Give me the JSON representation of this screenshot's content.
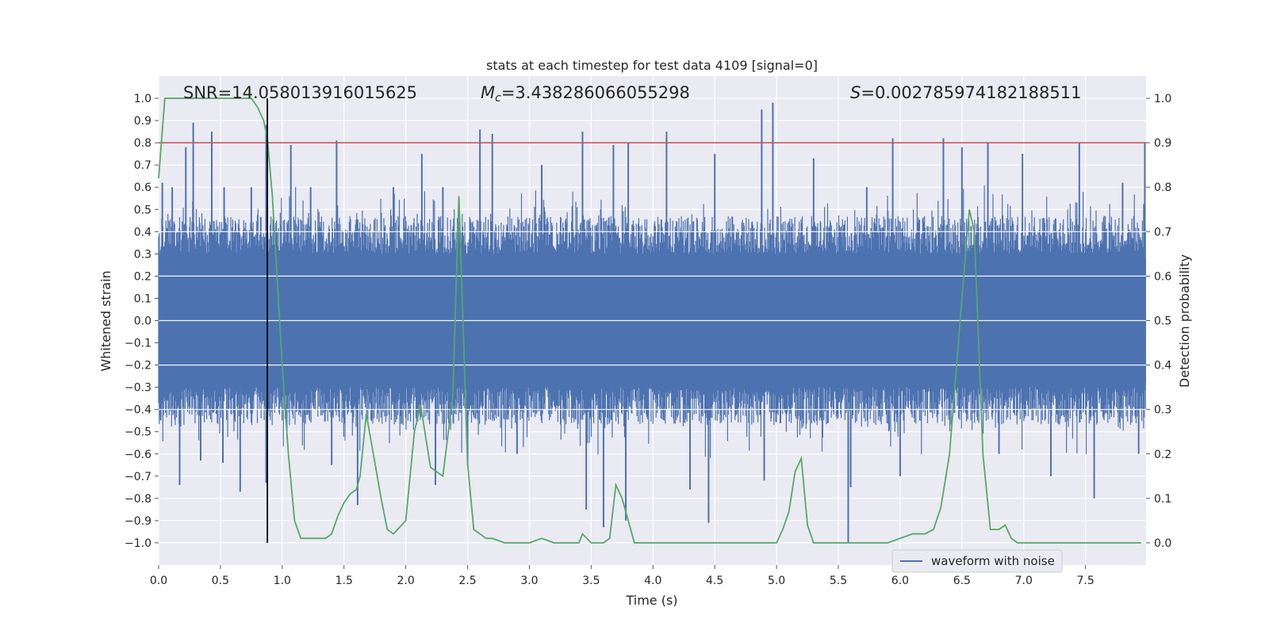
{
  "chart_data": {
    "type": "line",
    "title": "stats at each timestep for test data 4109 [signal=0]",
    "xlabel": "Time (s)",
    "ylabel": "Whitened strain",
    "y2label": "Detection probability",
    "xlim": [
      0.0,
      7.99
    ],
    "ylim": [
      -1.1,
      1.1
    ],
    "y2lim": [
      -0.05,
      1.05
    ],
    "xticks": [
      0.0,
      0.5,
      1.0,
      1.5,
      2.0,
      2.5,
      3.0,
      3.5,
      4.0,
      4.5,
      5.0,
      5.5,
      6.0,
      6.5,
      7.0,
      7.5
    ],
    "yticks": [
      -1.0,
      -0.9,
      -0.8,
      -0.7,
      -0.6,
      -0.5,
      -0.4,
      -0.3,
      -0.2,
      -0.1,
      0.0,
      0.1,
      0.2,
      0.3,
      0.4,
      0.5,
      0.6,
      0.7,
      0.8,
      0.9,
      1.0
    ],
    "y2ticks": [
      0.0,
      0.1,
      0.2,
      0.3,
      0.4,
      0.5,
      0.6,
      0.7,
      0.8,
      0.9,
      1.0
    ],
    "threshold": 0.9,
    "marker_time": 0.88,
    "annotations": {
      "snr": "SNR=14.058013916015625",
      "mc_symbol": "M",
      "mc_sub": "c",
      "mc_value": "=3.438286066055298",
      "s_symbol": "S",
      "s_value": "=0.002785974182188511"
    },
    "legend": [
      {
        "label": "waveform with noise",
        "color": "#4c72b0"
      }
    ],
    "colors": {
      "waveform": "#4c72b0",
      "probability": "#55a868",
      "threshold": "#c44e52",
      "marker": "#000000",
      "background": "#eaeaf2",
      "grid": "#ffffff"
    },
    "series": [
      {
        "name": "waveform with noise",
        "axis": "left",
        "note": "dense noisy strain signal; main body spans roughly -0.4 to 0.4 with spikes",
        "spikes": [
          [
            0.03,
            0.62
          ],
          [
            0.11,
            0.6
          ],
          [
            0.17,
            -0.74
          ],
          [
            0.22,
            0.78
          ],
          [
            0.28,
            0.89
          ],
          [
            0.34,
            -0.63
          ],
          [
            0.43,
            0.85
          ],
          [
            0.52,
            -0.64
          ],
          [
            0.53,
            0.6
          ],
          [
            0.66,
            -0.77
          ],
          [
            0.75,
            0.6
          ],
          [
            0.87,
            0.88
          ],
          [
            0.87,
            -0.73
          ],
          [
            1.07,
            0.79
          ],
          [
            1.23,
            0.6
          ],
          [
            1.4,
            -0.65
          ],
          [
            1.44,
            0.81
          ],
          [
            1.61,
            -0.83
          ],
          [
            1.9,
            0.6
          ],
          [
            2.13,
            0.75
          ],
          [
            2.24,
            -0.74
          ],
          [
            2.3,
            0.6
          ],
          [
            2.5,
            -0.65
          ],
          [
            2.6,
            0.86
          ],
          [
            2.7,
            0.84
          ],
          [
            2.9,
            -0.6
          ],
          [
            3.1,
            0.7
          ],
          [
            3.43,
            0.85
          ],
          [
            3.46,
            -0.85
          ],
          [
            3.6,
            -0.93
          ],
          [
            3.68,
            0.79
          ],
          [
            3.78,
            -0.9
          ],
          [
            3.8,
            0.8
          ],
          [
            4.11,
            0.85
          ],
          [
            4.3,
            -0.76
          ],
          [
            4.45,
            -0.91
          ],
          [
            4.5,
            0.75
          ],
          [
            4.88,
            0.95
          ],
          [
            4.97,
            0.98
          ],
          [
            4.9,
            -0.72
          ],
          [
            5.3,
            0.73
          ],
          [
            5.58,
            -1.0
          ],
          [
            5.6,
            -0.75
          ],
          [
            5.73,
            0.6
          ],
          [
            5.94,
            0.82
          ],
          [
            6.0,
            -0.7
          ],
          [
            6.35,
            0.82
          ],
          [
            6.5,
            0.78
          ],
          [
            6.71,
            0.8
          ],
          [
            6.8,
            -0.6
          ],
          [
            6.99,
            0.75
          ],
          [
            7.22,
            -0.7
          ],
          [
            7.45,
            0.8
          ],
          [
            7.57,
            -0.8
          ],
          [
            7.8,
            0.62
          ],
          [
            7.93,
            -0.6
          ],
          [
            7.98,
            0.8
          ]
        ]
      },
      {
        "name": "detection probability",
        "axis": "right",
        "x": [
          0.0,
          0.05,
          0.11,
          0.2,
          0.3,
          0.4,
          0.5,
          0.6,
          0.65,
          0.7,
          0.75,
          0.8,
          0.85,
          0.88,
          0.92,
          1.0,
          1.05,
          1.1,
          1.15,
          1.2,
          1.25,
          1.3,
          1.35,
          1.4,
          1.45,
          1.5,
          1.55,
          1.6,
          1.63,
          1.68,
          1.75,
          1.8,
          1.85,
          1.9,
          2.0,
          2.07,
          2.12,
          2.2,
          2.3,
          2.38,
          2.43,
          2.5,
          2.55,
          2.6,
          2.65,
          2.7,
          2.8,
          2.9,
          3.0,
          3.1,
          3.2,
          3.3,
          3.4,
          3.43,
          3.5,
          3.55,
          3.6,
          3.65,
          3.7,
          3.75,
          3.8,
          3.85,
          3.9,
          3.95,
          4.0,
          4.1,
          4.2,
          4.3,
          4.4,
          4.5,
          4.6,
          4.7,
          4.8,
          4.9,
          4.95,
          5.0,
          5.05,
          5.1,
          5.15,
          5.2,
          5.25,
          5.3,
          5.4,
          5.5,
          5.6,
          5.7,
          5.8,
          5.9,
          6.0,
          6.1,
          6.2,
          6.27,
          6.33,
          6.4,
          6.5,
          6.56,
          6.6,
          6.67,
          6.73,
          6.8,
          6.85,
          6.9,
          6.95,
          7.0,
          7.1,
          7.2,
          7.3,
          7.4,
          7.5,
          7.6,
          7.7,
          7.8,
          7.9,
          7.95
        ],
        "values": [
          0.82,
          1.0,
          1.0,
          1.0,
          1.0,
          1.0,
          1.0,
          1.0,
          1.0,
          1.0,
          1.0,
          0.98,
          0.95,
          0.91,
          0.78,
          0.4,
          0.2,
          0.05,
          0.01,
          0.01,
          0.01,
          0.01,
          0.01,
          0.02,
          0.06,
          0.09,
          0.11,
          0.12,
          0.15,
          0.29,
          0.18,
          0.1,
          0.03,
          0.02,
          0.05,
          0.25,
          0.31,
          0.17,
          0.15,
          0.33,
          0.78,
          0.18,
          0.03,
          0.02,
          0.01,
          0.01,
          0.0,
          0.0,
          0.0,
          0.01,
          0.0,
          0.0,
          0.0,
          0.02,
          0.0,
          0.0,
          0.0,
          0.01,
          0.13,
          0.1,
          0.05,
          0.0,
          0.0,
          0.0,
          0.0,
          0.0,
          0.0,
          0.0,
          0.0,
          0.0,
          0.0,
          0.0,
          0.0,
          0.0,
          0.0,
          0.0,
          0.03,
          0.07,
          0.16,
          0.19,
          0.04,
          0.0,
          0.0,
          0.0,
          0.0,
          0.0,
          0.0,
          0.0,
          0.01,
          0.02,
          0.02,
          0.03,
          0.08,
          0.2,
          0.55,
          0.75,
          0.7,
          0.2,
          0.03,
          0.03,
          0.04,
          0.01,
          0.0,
          0.0,
          0.0,
          0.0,
          0.0,
          0.0,
          0.0,
          0.0,
          0.0,
          0.0,
          0.0,
          0.0
        ]
      }
    ]
  }
}
